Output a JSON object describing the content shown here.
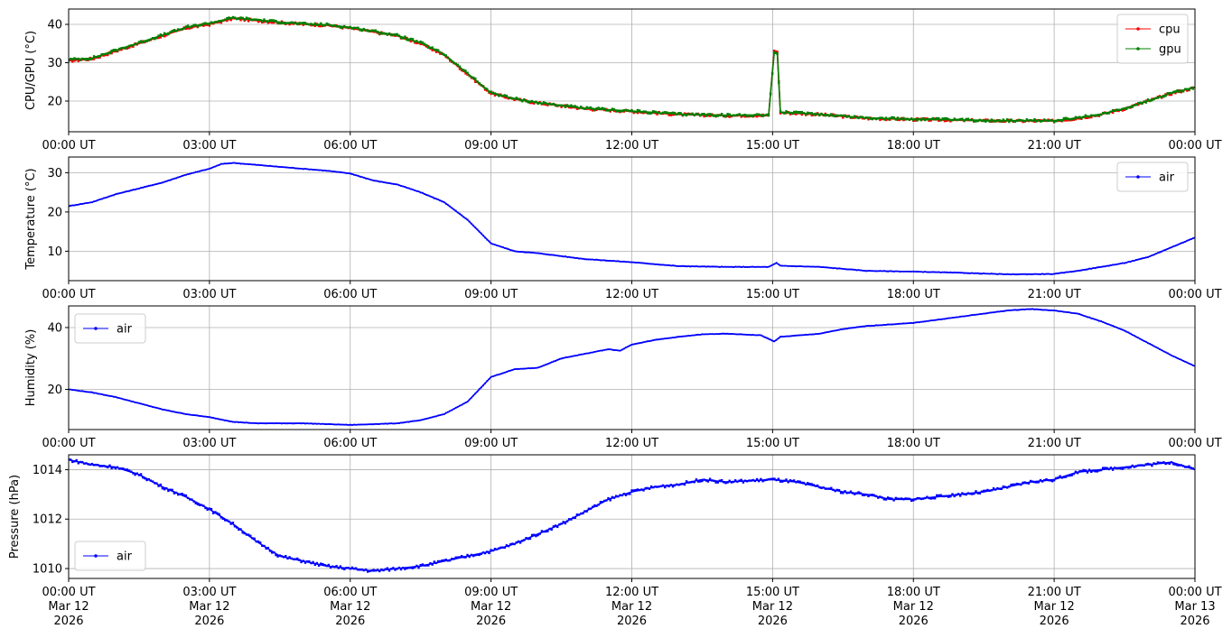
{
  "chart_data": [
    {
      "type": "line",
      "ylabel": "CPU/GPU (°C)",
      "ylim": [
        12,
        44
      ],
      "yticks": [
        20,
        30,
        40
      ],
      "xlim": [
        "2026-03-12T00:00",
        "2026-03-13T00:00"
      ],
      "xtick_labels": [
        "00:00 UT",
        "03:00 UT",
        "06:00 UT",
        "09:00 UT",
        "12:00 UT",
        "15:00 UT",
        "18:00 UT",
        "21:00 UT",
        "00:00 UT"
      ],
      "grid": true,
      "legend": "top-right",
      "series": [
        {
          "name": "cpu",
          "color": "#ff0000",
          "points": [
            [
              "00:00",
              30.5
            ],
            [
              "00:30",
              31
            ],
            [
              "01:00",
              33
            ],
            [
              "01:30",
              35
            ],
            [
              "02:00",
              37
            ],
            [
              "02:30",
              39
            ],
            [
              "03:00",
              40
            ],
            [
              "03:30",
              41.5
            ],
            [
              "04:00",
              41
            ],
            [
              "04:30",
              40.5
            ],
            [
              "05:00",
              40
            ],
            [
              "05:30",
              39.8
            ],
            [
              "06:00",
              39
            ],
            [
              "06:30",
              38
            ],
            [
              "07:00",
              37
            ],
            [
              "07:30",
              35
            ],
            [
              "08:00",
              32
            ],
            [
              "08:30",
              27
            ],
            [
              "09:00",
              22
            ],
            [
              "09:30",
              20.5
            ],
            [
              "10:00",
              19.5
            ],
            [
              "11:00",
              18
            ],
            [
              "12:00",
              17.3
            ],
            [
              "13:00",
              16.5
            ],
            [
              "14:00",
              16.2
            ],
            [
              "14:55",
              16.3
            ],
            [
              "15:02",
              33
            ],
            [
              "15:06",
              33
            ],
            [
              "15:10",
              17
            ],
            [
              "16:00",
              16.5
            ],
            [
              "17:00",
              15.5
            ],
            [
              "18:00",
              15.2
            ],
            [
              "19:00",
              15
            ],
            [
              "20:00",
              14.8
            ],
            [
              "21:00",
              14.8
            ],
            [
              "21:30",
              15.5
            ],
            [
              "22:00",
              16.5
            ],
            [
              "22:30",
              18
            ],
            [
              "23:00",
              20
            ],
            [
              "23:30",
              22
            ],
            [
              "24:00",
              23.5
            ]
          ]
        },
        {
          "name": "gpu",
          "color": "#008000",
          "points": [
            [
              "00:00",
              30.8
            ],
            [
              "00:30",
              31.2
            ],
            [
              "01:00",
              33.2
            ],
            [
              "01:30",
              35.2
            ],
            [
              "02:00",
              37.2
            ],
            [
              "02:30",
              39.2
            ],
            [
              "03:00",
              40.3
            ],
            [
              "03:30",
              41.7
            ],
            [
              "04:00",
              41.2
            ],
            [
              "04:30",
              40.6
            ],
            [
              "05:00",
              40.1
            ],
            [
              "05:30",
              39.9
            ],
            [
              "06:00",
              39.2
            ],
            [
              "06:30",
              38.2
            ],
            [
              "07:00",
              37.1
            ],
            [
              "07:30",
              35.2
            ],
            [
              "08:00",
              32.2
            ],
            [
              "08:30",
              27.2
            ],
            [
              "09:00",
              22.2
            ],
            [
              "09:30",
              20.6
            ],
            [
              "10:00",
              19.6
            ],
            [
              "11:00",
              18.1
            ],
            [
              "12:00",
              17.4
            ],
            [
              "13:00",
              16.6
            ],
            [
              "14:00",
              16.3
            ],
            [
              "14:55",
              16.4
            ],
            [
              "15:02",
              32.5
            ],
            [
              "15:06",
              32.5
            ],
            [
              "15:10",
              17.1
            ],
            [
              "16:00",
              16.6
            ],
            [
              "17:00",
              15.6
            ],
            [
              "18:00",
              15.3
            ],
            [
              "19:00",
              15.1
            ],
            [
              "20:00",
              14.9
            ],
            [
              "21:00",
              14.9
            ],
            [
              "21:30",
              15.6
            ],
            [
              "22:00",
              16.6
            ],
            [
              "22:30",
              18.1
            ],
            [
              "23:00",
              20.1
            ],
            [
              "23:30",
              22.1
            ],
            [
              "24:00",
              23.6
            ]
          ]
        }
      ]
    },
    {
      "type": "line",
      "ylabel": "Temperature (°C)",
      "ylim": [
        2.5,
        34
      ],
      "yticks": [
        10,
        20,
        30
      ],
      "xlim": [
        "2026-03-12T00:00",
        "2026-03-13T00:00"
      ],
      "xtick_labels": [
        "00:00 UT",
        "03:00 UT",
        "06:00 UT",
        "09:00 UT",
        "12:00 UT",
        "15:00 UT",
        "18:00 UT",
        "21:00 UT",
        "00:00 UT"
      ],
      "grid": true,
      "legend": "top-right",
      "series": [
        {
          "name": "air",
          "color": "#0000ff",
          "points": [
            [
              "00:00",
              21.5
            ],
            [
              "00:30",
              22.5
            ],
            [
              "01:00",
              24.5
            ],
            [
              "01:30",
              26
            ],
            [
              "02:00",
              27.5
            ],
            [
              "02:30",
              29.5
            ],
            [
              "03:00",
              31
            ],
            [
              "03:15",
              32.2
            ],
            [
              "03:30",
              32.5
            ],
            [
              "04:00",
              32
            ],
            [
              "04:30",
              31.5
            ],
            [
              "05:00",
              31
            ],
            [
              "05:30",
              30.5
            ],
            [
              "06:00",
              29.8
            ],
            [
              "06:30",
              28
            ],
            [
              "07:00",
              27
            ],
            [
              "07:30",
              25
            ],
            [
              "08:00",
              22.5
            ],
            [
              "08:30",
              18
            ],
            [
              "09:00",
              12
            ],
            [
              "09:30",
              10
            ],
            [
              "10:00",
              9.5
            ],
            [
              "11:00",
              8
            ],
            [
              "12:00",
              7.2
            ],
            [
              "13:00",
              6.2
            ],
            [
              "14:00",
              6
            ],
            [
              "14:55",
              6
            ],
            [
              "15:05",
              7
            ],
            [
              "15:10",
              6.3
            ],
            [
              "16:00",
              6
            ],
            [
              "17:00",
              5
            ],
            [
              "18:00",
              4.8
            ],
            [
              "19:00",
              4.5
            ],
            [
              "20:00",
              4.1
            ],
            [
              "21:00",
              4.2
            ],
            [
              "21:30",
              5
            ],
            [
              "22:00",
              6
            ],
            [
              "22:30",
              7
            ],
            [
              "23:00",
              8.5
            ],
            [
              "23:30",
              11
            ],
            [
              "24:00",
              13.5
            ]
          ]
        }
      ]
    },
    {
      "type": "line",
      "ylabel": "Humidity (%)",
      "ylim": [
        7,
        47
      ],
      "yticks": [
        20,
        40
      ],
      "xlim": [
        "2026-03-12T00:00",
        "2026-03-13T00:00"
      ],
      "xtick_labels": [
        "00:00 UT",
        "03:00 UT",
        "06:00 UT",
        "09:00 UT",
        "12:00 UT",
        "15:00 UT",
        "18:00 UT",
        "21:00 UT",
        "00:00 UT"
      ],
      "grid": true,
      "legend": "top-left",
      "series": [
        {
          "name": "air",
          "color": "#0000ff",
          "points": [
            [
              "00:00",
              20
            ],
            [
              "00:30",
              19
            ],
            [
              "01:00",
              17.5
            ],
            [
              "01:30",
              15.5
            ],
            [
              "02:00",
              13.5
            ],
            [
              "02:30",
              12
            ],
            [
              "03:00",
              11
            ],
            [
              "03:30",
              9.5
            ],
            [
              "04:00",
              9
            ],
            [
              "05:00",
              9
            ],
            [
              "06:00",
              8.5
            ],
            [
              "07:00",
              9
            ],
            [
              "07:30",
              10
            ],
            [
              "08:00",
              12
            ],
            [
              "08:30",
              16
            ],
            [
              "09:00",
              24
            ],
            [
              "09:30",
              26.5
            ],
            [
              "10:00",
              27
            ],
            [
              "10:30",
              30
            ],
            [
              "11:00",
              31.5
            ],
            [
              "11:30",
              33
            ],
            [
              "11:45",
              32.5
            ],
            [
              "12:00",
              34.5
            ],
            [
              "12:30",
              36
            ],
            [
              "13:00",
              37
            ],
            [
              "13:30",
              37.8
            ],
            [
              "14:00",
              38
            ],
            [
              "14:45",
              37.5
            ],
            [
              "15:02",
              35.5
            ],
            [
              "15:10",
              37
            ],
            [
              "16:00",
              38
            ],
            [
              "16:30",
              39.5
            ],
            [
              "17:00",
              40.5
            ],
            [
              "18:00",
              41.5
            ],
            [
              "19:00",
              43.5
            ],
            [
              "20:00",
              45.5
            ],
            [
              "20:30",
              46
            ],
            [
              "21:00",
              45.5
            ],
            [
              "21:30",
              44.5
            ],
            [
              "22:00",
              42
            ],
            [
              "22:30",
              39
            ],
            [
              "23:00",
              35
            ],
            [
              "23:30",
              31
            ],
            [
              "24:00",
              27.5
            ]
          ]
        }
      ]
    },
    {
      "type": "scatter",
      "ylabel": "Pressure (hPa)",
      "ylim": [
        1009.6,
        1014.6
      ],
      "yticks": [
        1010,
        1012,
        1014
      ],
      "xlim": [
        "2026-03-12T00:00",
        "2026-03-13T00:00"
      ],
      "xtick_labels": [
        "00:00 UT\nMar 12\n2026",
        "03:00 UT\nMar 12\n2026",
        "06:00 UT\nMar 12\n2026",
        "09:00 UT\nMar 12\n2026",
        "12:00 UT\nMar 12\n2026",
        "15:00 UT\nMar 12\n2026",
        "18:00 UT\nMar 12\n2026",
        "21:00 UT\nMar 12\n2026",
        "00:00 UT\nMar 13\n2026"
      ],
      "grid": true,
      "legend": "bottom-left",
      "series": [
        {
          "name": "air",
          "color": "#0000ff",
          "points": [
            [
              "00:00",
              1014.4
            ],
            [
              "00:30",
              1014.2
            ],
            [
              "01:00",
              1014.1
            ],
            [
              "01:30",
              1013.8
            ],
            [
              "02:00",
              1013.3
            ],
            [
              "02:30",
              1012.9
            ],
            [
              "03:00",
              1012.4
            ],
            [
              "03:30",
              1011.8
            ],
            [
              "04:00",
              1011.1
            ],
            [
              "04:30",
              1010.5
            ],
            [
              "05:00",
              1010.3
            ],
            [
              "05:30",
              1010.1
            ],
            [
              "06:00",
              1010
            ],
            [
              "06:30",
              1009.9
            ],
            [
              "07:00",
              1010
            ],
            [
              "07:30",
              1010.1
            ],
            [
              "08:00",
              1010.3
            ],
            [
              "08:30",
              1010.5
            ],
            [
              "09:00",
              1010.7
            ],
            [
              "09:30",
              1011
            ],
            [
              "10:00",
              1011.4
            ],
            [
              "10:30",
              1011.8
            ],
            [
              "11:00",
              1012.3
            ],
            [
              "11:30",
              1012.8
            ],
            [
              "12:00",
              1013.1
            ],
            [
              "12:30",
              1013.3
            ],
            [
              "13:00",
              1013.4
            ],
            [
              "13:30",
              1013.6
            ],
            [
              "14:00",
              1013.5
            ],
            [
              "15:00",
              1013.6
            ],
            [
              "15:30",
              1013.5
            ],
            [
              "16:00",
              1013.3
            ],
            [
              "16:30",
              1013.1
            ],
            [
              "17:00",
              1013
            ],
            [
              "17:30",
              1012.8
            ],
            [
              "18:00",
              1012.8
            ],
            [
              "18:30",
              1012.9
            ],
            [
              "19:00",
              1013
            ],
            [
              "19:30",
              1013.1
            ],
            [
              "20:00",
              1013.3
            ],
            [
              "20:30",
              1013.5
            ],
            [
              "21:00",
              1013.6
            ],
            [
              "21:30",
              1013.9
            ],
            [
              "22:00",
              1014
            ],
            [
              "22:30",
              1014.1
            ],
            [
              "23:00",
              1014.2
            ],
            [
              "23:30",
              1014.3
            ],
            [
              "24:00",
              1014
            ]
          ]
        }
      ]
    }
  ]
}
